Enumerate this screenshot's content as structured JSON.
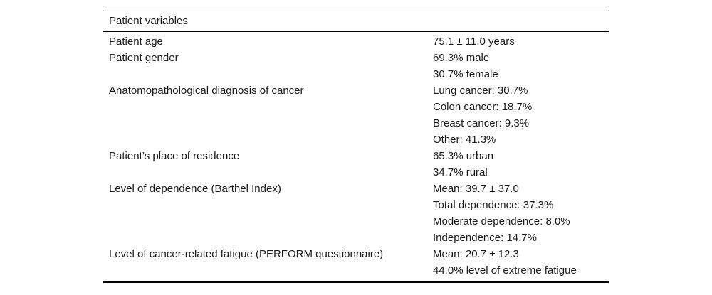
{
  "page": {
    "background": "#ffffff",
    "text_color": "#1a1a1a",
    "rule_color": "#000000"
  },
  "table": {
    "header": "Patient variables",
    "rows": [
      {
        "label": "Patient age",
        "values": [
          "75.1 ± 11.0 years"
        ]
      },
      {
        "label": "Patient gender",
        "values": [
          "69.3% male",
          "30.7% female"
        ]
      },
      {
        "label": "Anatomopathological diagnosis of cancer",
        "values": [
          "Lung cancer: 30.7%",
          "Colon cancer: 18.7%",
          "Breast cancer: 9.3%",
          "Other: 41.3%"
        ]
      },
      {
        "label": "Patient’s place of residence",
        "values": [
          "65.3% urban",
          "34.7% rural"
        ]
      },
      {
        "label": "Level of dependence (Barthel Index)",
        "values": [
          "Mean: 39.7 ± 37.0",
          "Total dependence: 37.3%",
          "Moderate dependence: 8.0%",
          "Independence: 14.7%"
        ]
      },
      {
        "label": "Level of cancer-related fatigue (PERFORM questionnaire)",
        "values": [
          "Mean: 20.7 ± 12.3",
          "44.0% level of extreme fatigue"
        ]
      }
    ]
  }
}
